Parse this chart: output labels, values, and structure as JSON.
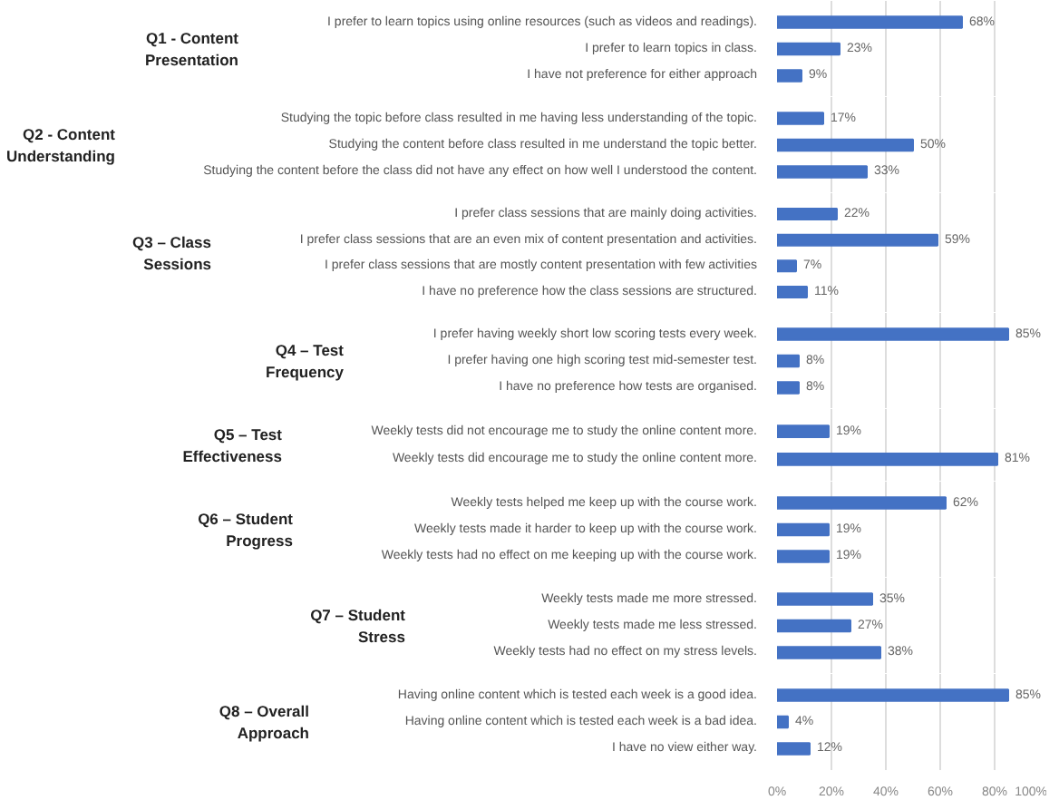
{
  "chart_data": [
    {
      "type": "bar",
      "orientation": "horizontal",
      "title": "Q1 - Content Presentation",
      "categories": [
        "I prefer to learn topics using online resources (such as videos and readings).",
        "I prefer to learn topics in class.",
        "I have not preference for either approach"
      ],
      "values": [
        68,
        23,
        9
      ],
      "value_labels": [
        "68%",
        "23%",
        "9%"
      ],
      "color": "#4472c4",
      "xlim": [
        0,
        100
      ],
      "xticks": [
        0,
        20,
        40,
        60,
        80,
        100
      ],
      "grid": "x",
      "tick_labels": "y"
    },
    {
      "type": "bar",
      "orientation": "horizontal",
      "title": "Q2 - Content Understanding",
      "categories": [
        "Studying the topic before class resulted in me having less understanding of the topic.",
        "Studying the content before class resulted in me understand the topic better.",
        "Studying the content before the class did not have any effect on how well I understood the content."
      ],
      "values": [
        17,
        50,
        33
      ],
      "value_labels": [
        "17%",
        "50%",
        "33%"
      ],
      "color": "#4472c4",
      "xlim": [
        0,
        100
      ],
      "xticks": [
        0,
        20,
        40,
        60,
        80,
        100
      ],
      "grid": "x",
      "tick_labels": "y"
    },
    {
      "type": "bar",
      "orientation": "horizontal",
      "title": "Q3 – Class Sessions",
      "categories": [
        "I prefer class sessions that are mainly doing activities.",
        "I prefer class sessions that are an even mix of content presentation and activities.",
        "I prefer class sessions that are mostly content presentation with few activities",
        "I have no preference how the class sessions are structured."
      ],
      "values": [
        22,
        59,
        7,
        11
      ],
      "value_labels": [
        "22%",
        "59%",
        "7%",
        "11%"
      ],
      "color": "#4472c4",
      "xlim": [
        0,
        100
      ],
      "xticks": [
        0,
        20,
        40,
        60,
        80,
        100
      ],
      "grid": "x",
      "tick_labels": "y"
    },
    {
      "type": "bar",
      "orientation": "horizontal",
      "title": "Q4 – Test Frequency",
      "categories": [
        "I prefer having weekly short low scoring tests every week.",
        "I prefer having one high scoring test mid-semester test.",
        "I have no preference how tests are organised."
      ],
      "values": [
        85,
        8,
        8
      ],
      "value_labels": [
        "85%",
        "8%",
        "8%"
      ],
      "color": "#4472c4",
      "xlim": [
        0,
        100
      ],
      "xticks": [
        0,
        20,
        40,
        60,
        80,
        100
      ],
      "grid": "x",
      "tick_labels": "y"
    },
    {
      "type": "bar",
      "orientation": "horizontal",
      "title": "Q5 – Test Effectiveness",
      "categories": [
        "Weekly tests did not encourage me to study the online content more.",
        "Weekly tests did encourage me to study the online content more."
      ],
      "values": [
        19,
        81
      ],
      "value_labels": [
        "19%",
        "81%"
      ],
      "color": "#4472c4",
      "xlim": [
        0,
        100
      ],
      "xticks": [
        0,
        20,
        40,
        60,
        80,
        100
      ],
      "grid": "x",
      "tick_labels": "y"
    },
    {
      "type": "bar",
      "orientation": "horizontal",
      "title": "Q6 – Student Progress",
      "categories": [
        "Weekly tests helped me keep up with the course work.",
        "Weekly tests made it harder to keep up with the course work.",
        "Weekly tests had no effect on me keeping up with the course work."
      ],
      "values": [
        62,
        19,
        19
      ],
      "value_labels": [
        "62%",
        "19%",
        "19%"
      ],
      "color": "#4472c4",
      "xlim": [
        0,
        100
      ],
      "xticks": [
        0,
        20,
        40,
        60,
        80,
        100
      ],
      "grid": "x",
      "tick_labels": "y"
    },
    {
      "type": "bar",
      "orientation": "horizontal",
      "title": "Q7 – Student Stress",
      "categories": [
        "Weekly tests made me more stressed.",
        "Weekly tests made me less stressed.",
        "Weekly tests had no effect on my stress levels."
      ],
      "values": [
        35,
        27,
        38
      ],
      "value_labels": [
        "35%",
        "27%",
        "38%"
      ],
      "color": "#4472c4",
      "xlim": [
        0,
        100
      ],
      "xticks": [
        0,
        20,
        40,
        60,
        80,
        100
      ],
      "grid": "x",
      "tick_labels": "y"
    },
    {
      "type": "bar",
      "orientation": "horizontal",
      "title": "Q8 – Overall Approach",
      "categories": [
        "Having online content which is tested each week is a good idea.",
        "Having online content which is tested each week is a bad idea.",
        "I have no view either way."
      ],
      "values": [
        85,
        4,
        12
      ],
      "value_labels": [
        "85%",
        "4%",
        "12%"
      ],
      "color": "#4472c4",
      "xlim": [
        0,
        100
      ],
      "xticks": [
        {
          "value": 0,
          "label": "0%"
        },
        {
          "value": 20,
          "label": "20%"
        },
        {
          "value": 40,
          "label": "40%"
        },
        {
          "value": 60,
          "label": "60%"
        },
        {
          "value": 80,
          "label": "80%"
        },
        {
          "value": 100,
          "label": "100%"
        }
      ],
      "grid": "x"
    }
  ]
}
